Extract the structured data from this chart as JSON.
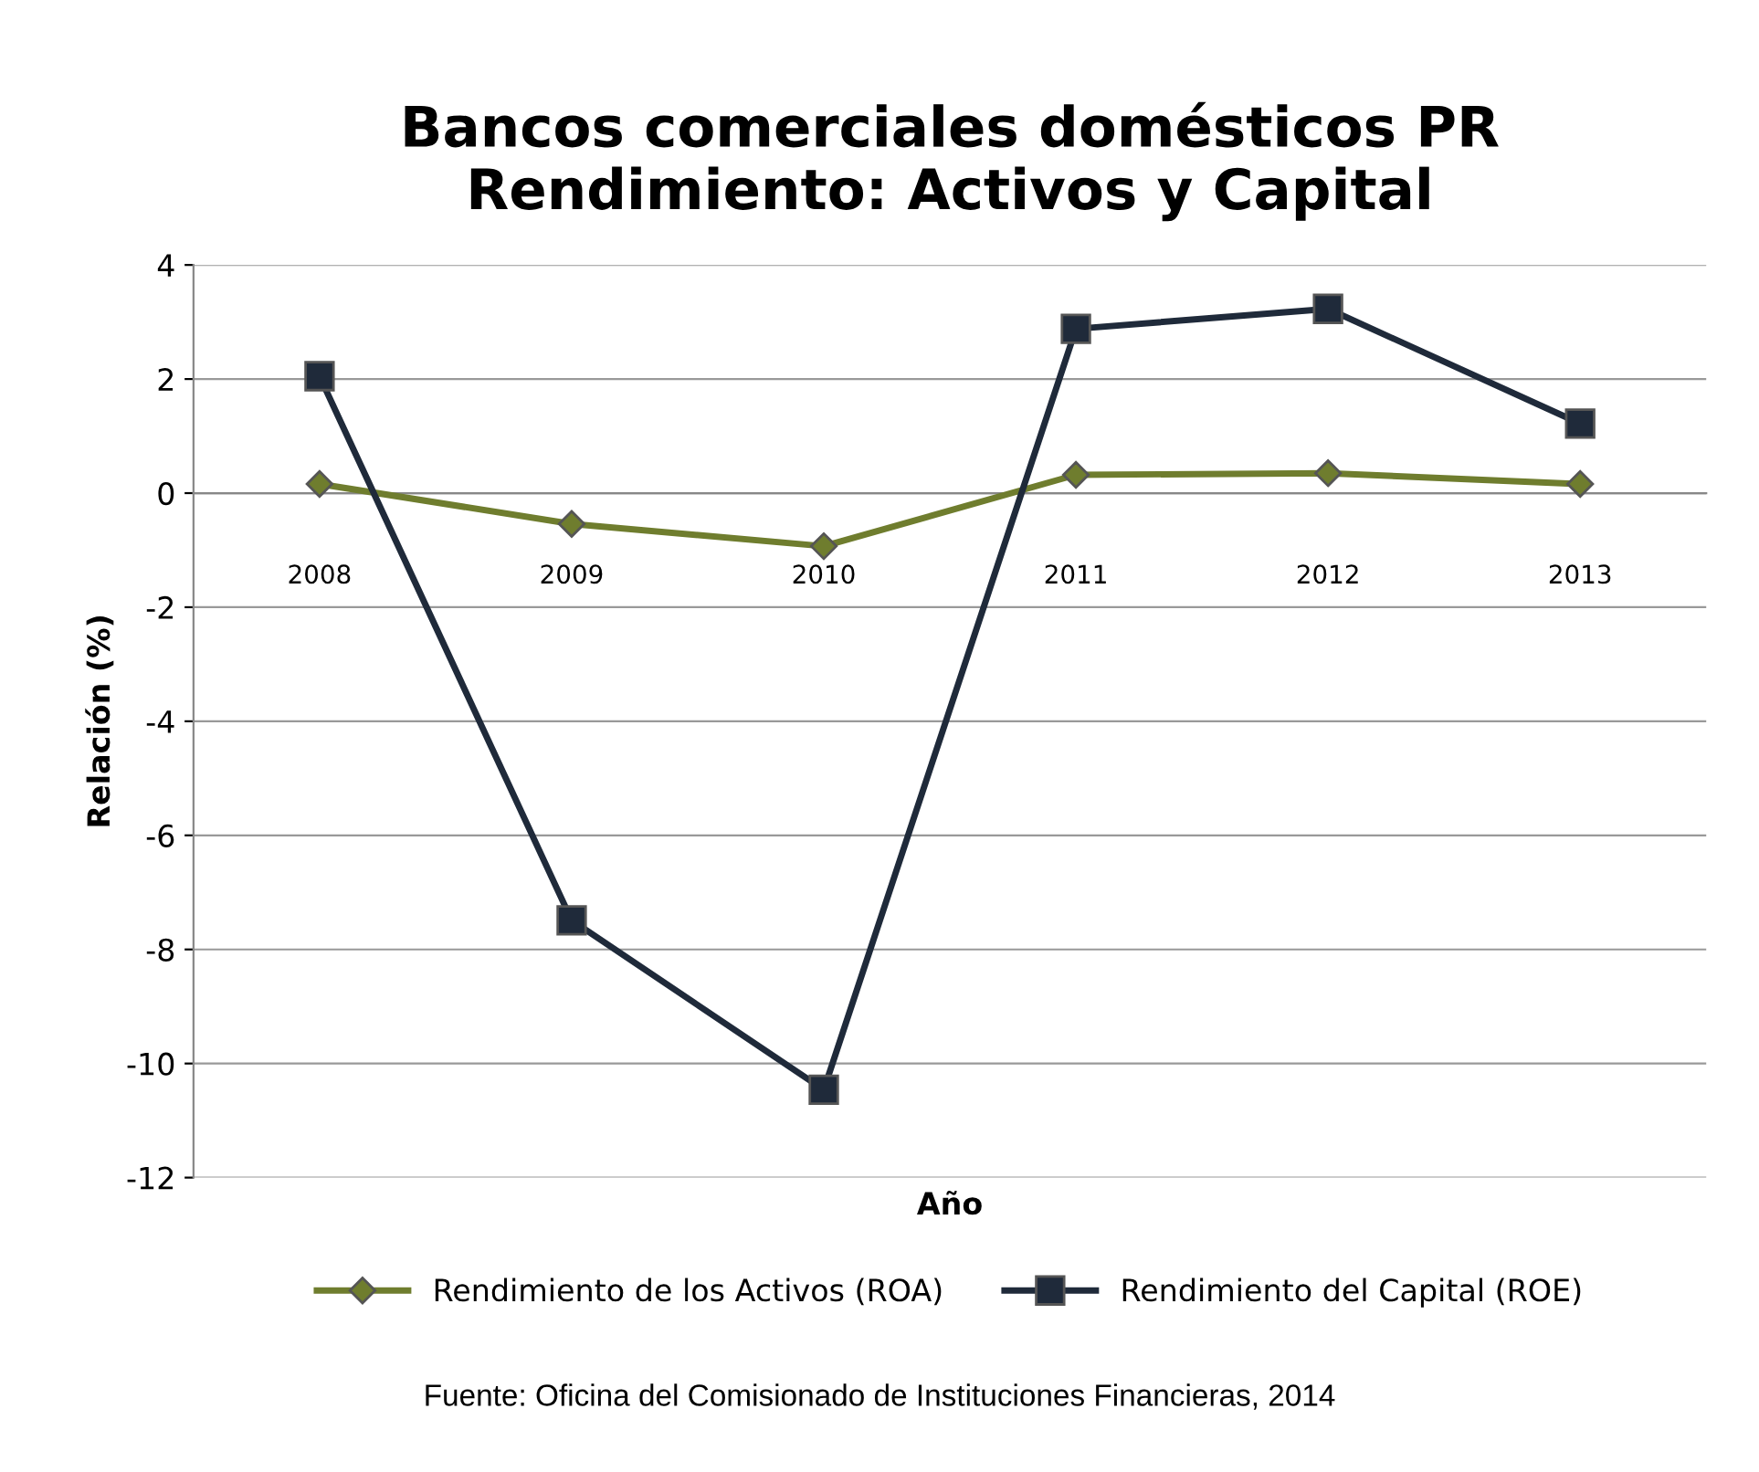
{
  "chart_data": {
    "type": "line",
    "title": "Bancos comerciales domésticos PR\nRendimiento: Activos y Capital",
    "xlabel": "Año",
    "ylabel": "Relación (%)",
    "categories": [
      "2008",
      "2009",
      "2010",
      "2011",
      "2012",
      "2013"
    ],
    "series": [
      {
        "name": "Rendimiento de los Activos (ROA)",
        "color": "#6f7d2e",
        "marker": "diamond",
        "values": [
          0.16,
          -0.54,
          -0.93,
          0.32,
          0.35,
          0.16
        ]
      },
      {
        "name": "Rendimiento del Capital (ROE)",
        "color": "#1f2a3a",
        "marker": "square",
        "values": [
          2.05,
          -7.49,
          -10.46,
          2.88,
          3.23,
          1.22
        ]
      }
    ],
    "ylim": [
      -12,
      4
    ],
    "yticks": [
      -12,
      -10,
      -8,
      -6,
      -4,
      -2,
      0,
      2,
      4
    ],
    "grid": "y",
    "legend": "bottom",
    "line_style": "solid",
    "annotations": [
      "Fuente: Oficina del Comisionado de Instituciones Financieras, 2014"
    ]
  }
}
